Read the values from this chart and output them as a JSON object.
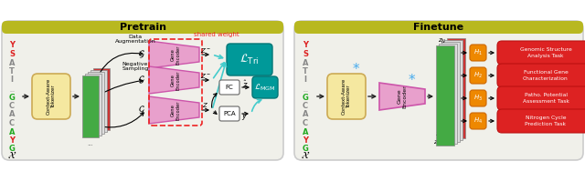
{
  "pretrain_title": "Pretrain",
  "finetune_title": "Finetune",
  "header_color": "#b8b820",
  "tokenizer_fc": "#f5e8a0",
  "tokenizer_ec": "#ccaa55",
  "encoder_fc": "#e8a0cc",
  "encoder_ec": "#cc55aa",
  "teal_fc": "#009999",
  "teal_ec": "#007777",
  "task_fc": "#dd2222",
  "task_ec": "#bb1111",
  "h_fc": "#ee8800",
  "h_ec": "#cc6600",
  "shared_ec": "#ee2222",
  "cyan": "#44cccc",
  "stack_top": "#44aa44",
  "stack_bot": "#cc3333",
  "stack_mid": "#dddddd",
  "panel_fc": "#f0f0ea",
  "panel_ec": "#cccccc",
  "arrow_col": "#222222",
  "seq_Y_col": "#dd2222",
  "seq_G_col": "#22aa22",
  "seq_other": "#888888",
  "seq_left": [
    [
      "Y",
      "#dd2222"
    ],
    [
      "S",
      "#dd2222"
    ],
    [
      "A",
      "#888888"
    ],
    [
      "T",
      "#888888"
    ],
    [
      "I",
      "#888888"
    ],
    [
      "...",
      "#888888"
    ],
    [
      "G",
      "#22aa22"
    ],
    [
      "C",
      "#888888"
    ],
    [
      "A",
      "#888888"
    ],
    [
      "C",
      "#888888"
    ],
    [
      "A",
      "#22aa22"
    ],
    [
      "Y",
      "#dd2222"
    ],
    [
      "G",
      "#22aa22"
    ]
  ],
  "tasks": [
    "Genomic Structure\nAnalysis Task",
    "Functional Gene\nCharacterization",
    "Patho. Potential\nAssessment Task",
    "Nitrogen Cycle\nPrediction Task"
  ],
  "h_labels": [
    "$H_1$",
    "$H_2$",
    "$H_3$",
    "$H_4$"
  ]
}
